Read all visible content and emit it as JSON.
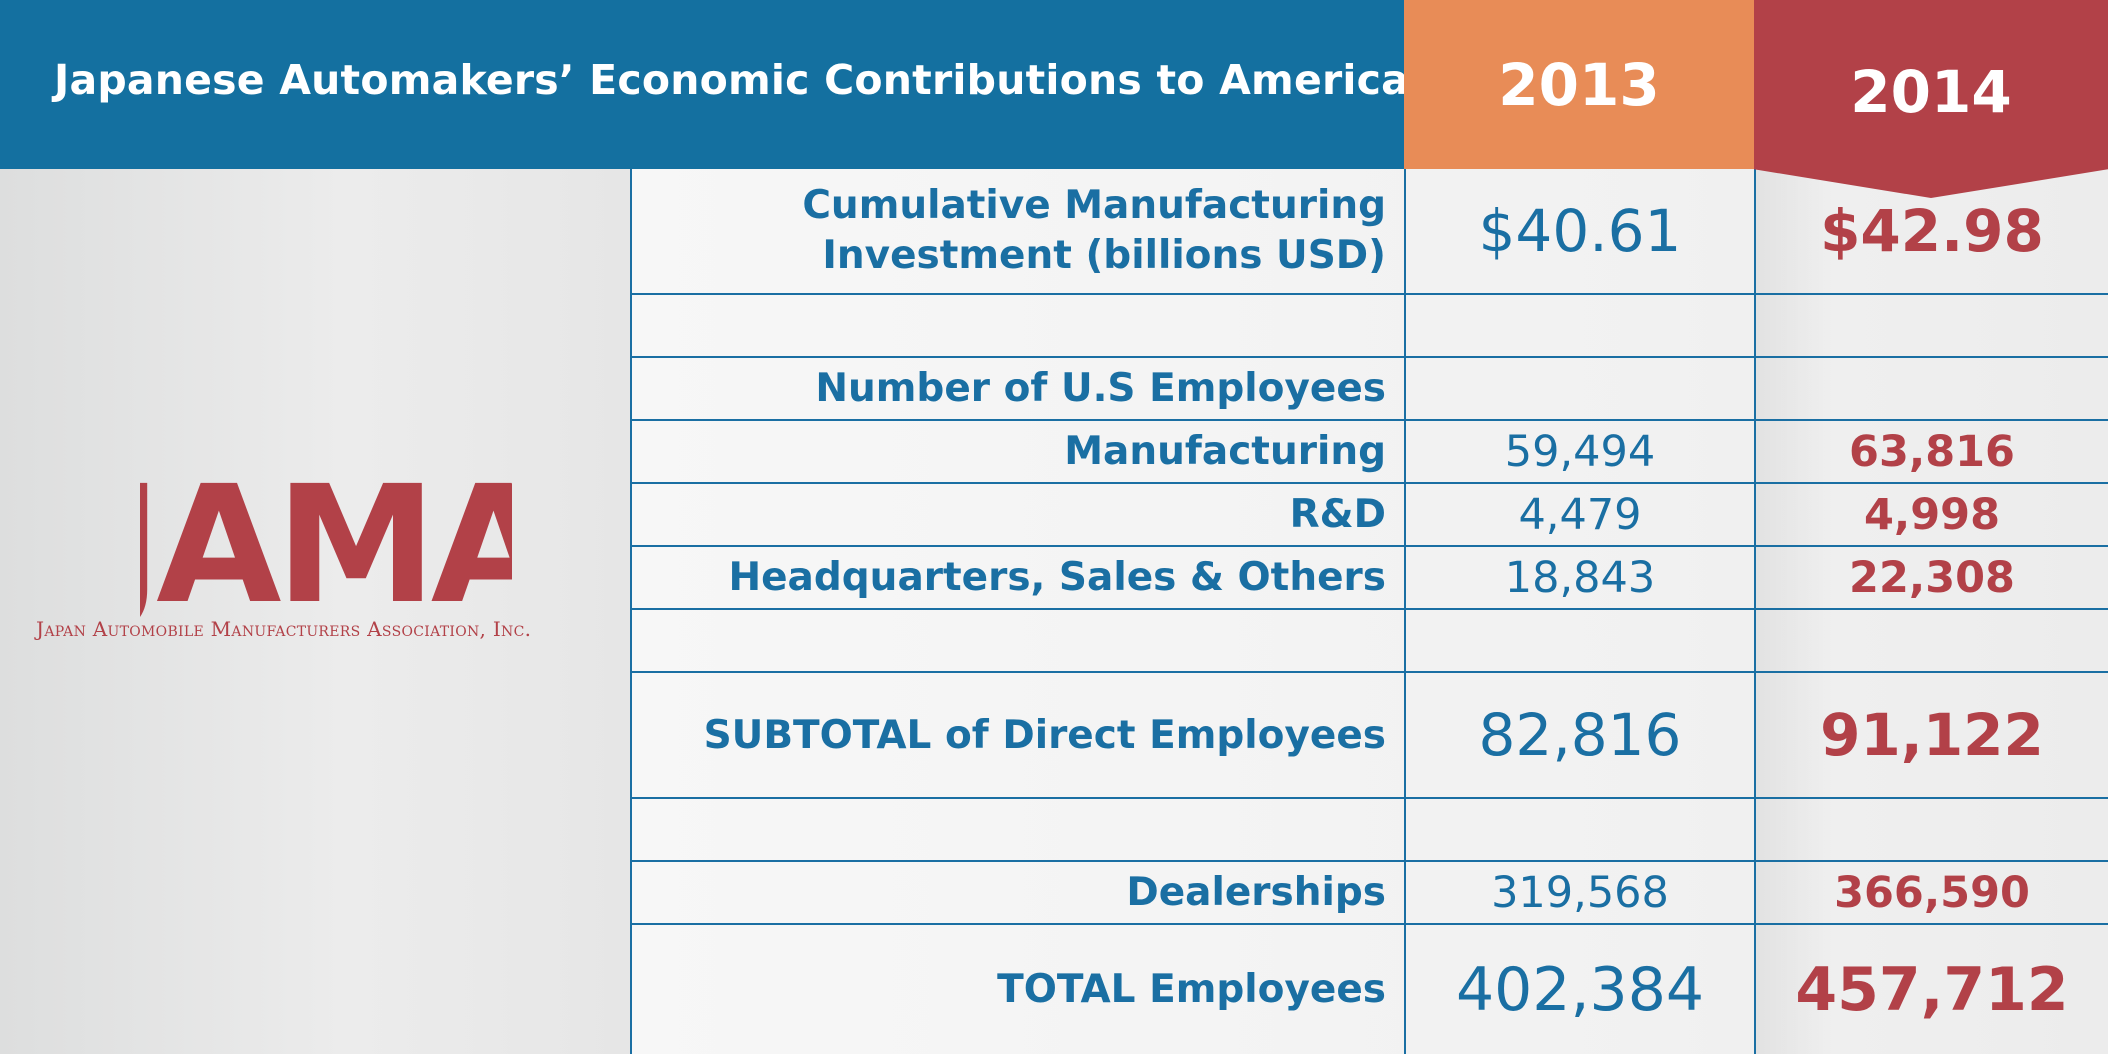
{
  "header": {
    "title": "Japanese Automakers’ Economic Contributions to America",
    "years": [
      "2013",
      "2014"
    ]
  },
  "logo": {
    "wordmark": "JAMA",
    "subtitle": "Japan Automobile Manufacturers Association, Inc."
  },
  "colors": {
    "header_blue": "#1470a0",
    "year_2013_orange": "#e88c57",
    "year_2014_red": "#b24148",
    "text_blue": "#1a6fa3",
    "text_red": "#b24148"
  },
  "rows": [
    {
      "label": "Cumulative Manufacturing Investment (billions USD)",
      "v2013": "$40.61",
      "v2014": "$42.98"
    },
    {
      "label": "",
      "v2013": "",
      "v2014": ""
    },
    {
      "label": "Number of U.S Employees",
      "v2013": "",
      "v2014": ""
    },
    {
      "label": "Manufacturing",
      "v2013": "59,494",
      "v2014": "63,816"
    },
    {
      "label": "R&D",
      "v2013": "4,479",
      "v2014": "4,998"
    },
    {
      "label": "Headquarters, Sales & Others",
      "v2013": "18,843",
      "v2014": "22,308"
    },
    {
      "label": "",
      "v2013": "",
      "v2014": ""
    },
    {
      "label": "SUBTOTAL of Direct Employees",
      "v2013": "82,816",
      "v2014": "91,122"
    },
    {
      "label": "",
      "v2013": "",
      "v2014": ""
    },
    {
      "label": "Dealerships",
      "v2013": "319,568",
      "v2014": "366,590"
    },
    {
      "label": "TOTAL Employees",
      "v2013": "402,384",
      "v2014": "457,712"
    }
  ],
  "investment_label_lines": [
    "Cumulative Manufacturing",
    "Investment (billions USD)"
  ]
}
